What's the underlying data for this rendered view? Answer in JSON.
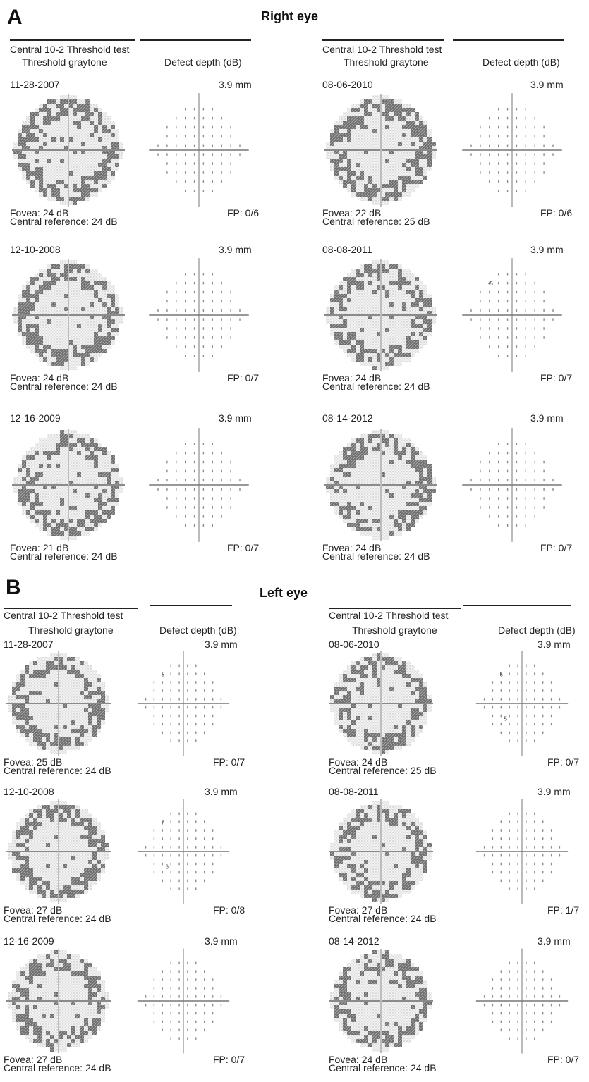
{
  "panels": [
    {
      "letter": "A",
      "eye": "Right eye",
      "columns": [
        {
          "test_label": "Central 10-2 Threshold test",
          "graytone_label": "Threshold graytone",
          "defect_label": "Defect depth (dB)",
          "exams": [
            {
              "date": "11-28-2007",
              "scale": "3.9 mm",
              "fovea": "Fovea: 24 dB",
              "central_ref": "Central reference: 24 dB",
              "fp": "FP: 0/6",
              "marks": []
            },
            {
              "date": "12-10-2008",
              "scale": "3.9 mm",
              "fovea": "Fovea: 24 dB",
              "central_ref": "Central reference: 24 dB",
              "fp": "FP: 0/7",
              "marks": []
            },
            {
              "date": "12-16-2009",
              "scale": "3.9 mm",
              "fovea": "Fovea: 21 dB",
              "central_ref": "Central reference: 24 dB",
              "fp": "FP: 0/7",
              "marks": []
            }
          ]
        },
        {
          "test_label": "Central 10-2 Threshold test",
          "graytone_label": "Threshold graytone",
          "defect_label": "Defect depth (dB)",
          "exams": [
            {
              "date": "08-06-2010",
              "scale": "3.9 mm",
              "fovea": "Fovea: 22 dB",
              "central_ref": "Central reference: 25 dB",
              "fp": "FP: 0/6",
              "marks": []
            },
            {
              "date": "08-08-2011",
              "scale": "3.9 mm",
              "fovea": "Fovea: 24 dB",
              "central_ref": "Central reference: 24 dB",
              "fp": "FP: 0/7",
              "marks": [
                "-5"
              ]
            },
            {
              "date": "08-14-2012",
              "scale": "3.9 mm",
              "fovea": "Fovea: 24 dB",
              "central_ref": "Central reference: 24 dB",
              "fp": "FP: 0/7",
              "marks": []
            }
          ]
        }
      ]
    },
    {
      "letter": "B",
      "eye": "Left eye",
      "columns": [
        {
          "test_label": "Central 10-2 Threshold test",
          "graytone_label": "Threshold graytone",
          "defect_label": "Defect depth (dB)",
          "exams": [
            {
              "date": "11-28-2007",
              "scale": "3.9 mm",
              "fovea": "Fovea: 25 dB",
              "central_ref": "Central reference: 24 dB",
              "fp": "FP: 0/7",
              "marks": [
                "5"
              ]
            },
            {
              "date": "12-10-2008",
              "scale": "3.9 mm",
              "fovea": "Fovea: 27 dB",
              "central_ref": "Central reference: 24 dB",
              "fp": "FP: 0/8",
              "marks": [
                "7",
                "6"
              ]
            },
            {
              "date": "12-16-2009",
              "scale": "3.9 mm",
              "fovea": "Fovea: 27 dB",
              "central_ref": "Central reference: 24 dB",
              "fp": "FP: 0/7",
              "marks": []
            }
          ]
        },
        {
          "test_label": "Central 10-2 Threshold test",
          "graytone_label": "Threshold graytone",
          "defect_label": "Defect depth (dB)",
          "exams": [
            {
              "date": "08-06-2010",
              "scale": "3.9 mm",
              "fovea": "Fovea: 24 dB",
              "central_ref": "Central reference: 25 dB",
              "fp": "FP: 0/7",
              "marks": [
                "5",
                "5"
              ]
            },
            {
              "date": "08-08-2011",
              "scale": "3.9 mm",
              "fovea": "Fovea: 27 dB",
              "central_ref": "Central reference: 24 dB",
              "fp": "FP: 1/7",
              "marks": []
            },
            {
              "date": "08-14-2012",
              "scale": "3.9 mm",
              "fovea": "Fovea: 24 dB",
              "central_ref": "Central reference: 24 dB",
              "fp": "FP: 0/7",
              "marks": []
            }
          ]
        }
      ]
    }
  ]
}
